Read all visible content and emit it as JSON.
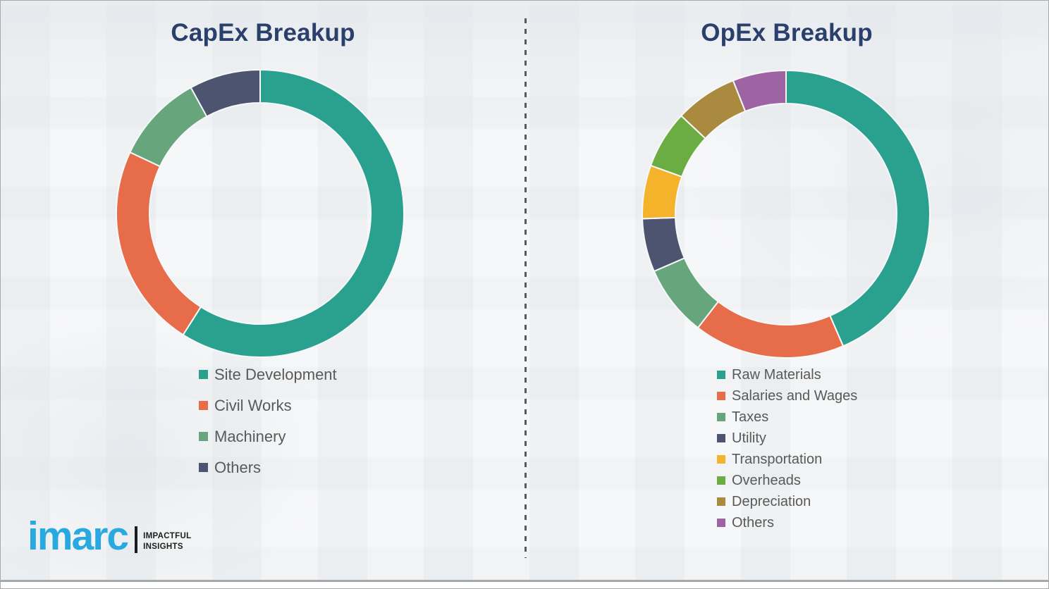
{
  "page": {
    "background_color": "#f6f7f8",
    "frame_border_color": "#a9a9a9",
    "title_color": "#2b3f6d",
    "legend_text_color": "#595959",
    "divider_style": "vertical-dashed-gray"
  },
  "chart_data": [
    {
      "type": "pie",
      "variant": "donut",
      "title": "CapEx Breakup",
      "labels": [
        "Site Development",
        "Civil Works",
        "Machinery",
        "Others"
      ],
      "values": [
        59,
        23,
        10,
        8
      ],
      "values_note": "percent, estimated from arc angles; no numeric labels shown",
      "colors": [
        "#2aa08f",
        "#e66c4a",
        "#67a57c",
        "#4d546f"
      ],
      "start_angle": "12 o'clock, clockwise",
      "data_labels": false,
      "legend_position": "below-chart-left"
    },
    {
      "type": "pie",
      "variant": "donut",
      "title": "OpEx Breakup",
      "labels": [
        "Raw Materials",
        "Salaries and Wages",
        "Taxes",
        "Utility",
        "Transportation",
        "Overheads",
        "Depreciation",
        "Others"
      ],
      "values": [
        43.5,
        17,
        8,
        6,
        6,
        6.5,
        7,
        6
      ],
      "values_note": "percent, estimated from arc angles; no numeric labels shown",
      "colors": [
        "#2aa08f",
        "#e66c4a",
        "#67a57c",
        "#4d546f",
        "#f5b32b",
        "#6cad43",
        "#a98a3e",
        "#9d63a3"
      ],
      "start_angle": "12 o'clock, clockwise",
      "data_labels": false,
      "legend_position": "below-chart-left"
    }
  ],
  "branding": {
    "logo_text": "imarc",
    "tagline_line1": "IMPACTFUL",
    "tagline_line2": "INSIGHTS",
    "logo_color": "#29a9e0",
    "tagline_color": "#1d1d1b"
  }
}
